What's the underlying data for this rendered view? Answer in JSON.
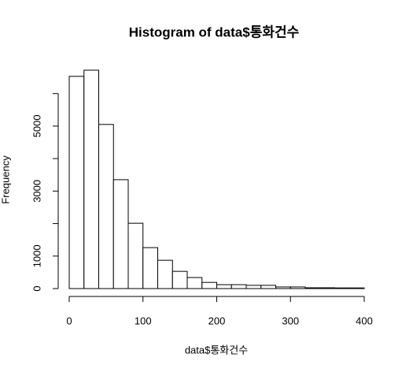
{
  "chart_data": {
    "type": "histogram",
    "title": "Histogram of data$통화건수",
    "x_label": "data$통화건수",
    "y_label": "Frequency",
    "bins": [
      0,
      20,
      40,
      60,
      80,
      100,
      120,
      140,
      160,
      180,
      200,
      220,
      240,
      260,
      280,
      300,
      320,
      340,
      360,
      380,
      400
    ],
    "counts": [
      6530,
      6720,
      5050,
      3350,
      2010,
      1260,
      870,
      530,
      340,
      190,
      120,
      120,
      100,
      100,
      50,
      50,
      25,
      25,
      20,
      20
    ],
    "color": "#ffffff",
    "xlim": [
      0,
      400
    ],
    "xticks": [
      0,
      100,
      200,
      300,
      400
    ],
    "ylim": [
      0,
      6720
    ],
    "yticks": [
      0,
      1000,
      2000,
      3000,
      4000,
      5000,
      6000
    ],
    "grid": false
  }
}
